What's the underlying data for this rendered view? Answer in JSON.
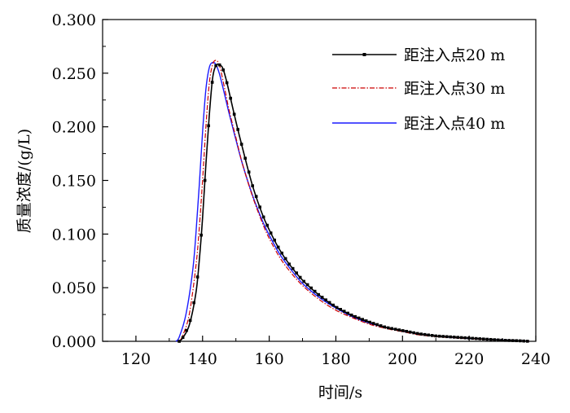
{
  "chart_data": {
    "type": "line",
    "title": "",
    "xlabel": "时间/s",
    "ylabel": "质量浓度/(g/L)",
    "xlim": [
      110,
      240
    ],
    "ylim": [
      0,
      0.3
    ],
    "x_ticks": [
      120,
      140,
      160,
      180,
      200,
      220,
      240
    ],
    "x_tick_labels": [
      "120",
      "140",
      "160",
      "180",
      "200",
      "220",
      "240"
    ],
    "y_ticks": [
      0,
      0.05,
      0.1,
      0.15,
      0.2,
      0.25,
      0.3
    ],
    "y_tick_labels": [
      "0.000",
      "0.050",
      "0.100",
      "0.150",
      "0.200",
      "0.250",
      "0.300"
    ],
    "grid": false,
    "legend_position": "top-right",
    "series": [
      {
        "name": "距注入点20 m",
        "color": "#000000",
        "style": "solid-square-markers",
        "x": [
          133,
          134,
          136,
          138,
          139,
          140,
          141,
          142,
          143,
          144,
          145,
          146,
          147,
          148,
          150,
          152,
          155,
          158,
          160,
          163,
          166,
          170,
          175,
          180,
          185,
          190,
          195,
          200,
          205,
          210,
          215,
          220,
          225,
          230,
          235,
          238
        ],
        "y": [
          0.0,
          0.003,
          0.015,
          0.045,
          0.075,
          0.115,
          0.165,
          0.21,
          0.245,
          0.257,
          0.258,
          0.255,
          0.245,
          0.232,
          0.205,
          0.18,
          0.145,
          0.118,
          0.104,
          0.086,
          0.072,
          0.057,
          0.043,
          0.032,
          0.024,
          0.018,
          0.013,
          0.01,
          0.007,
          0.005,
          0.004,
          0.003,
          0.002,
          0.001,
          0.0005,
          0.0
        ]
      },
      {
        "name": "距注入点30 m",
        "color": "#cc0000",
        "style": "dash-dot",
        "x": [
          133,
          134,
          136,
          138,
          139,
          140,
          141,
          142,
          143,
          144,
          145,
          146,
          147,
          148,
          150,
          152,
          155,
          158,
          160,
          163,
          166,
          170,
          175,
          180,
          185,
          190,
          195,
          200,
          205,
          210,
          215,
          220,
          225,
          230,
          235,
          238
        ],
        "y": [
          0.0,
          0.005,
          0.025,
          0.07,
          0.105,
          0.15,
          0.2,
          0.24,
          0.258,
          0.262,
          0.258,
          0.245,
          0.23,
          0.215,
          0.19,
          0.165,
          0.135,
          0.11,
          0.096,
          0.079,
          0.066,
          0.052,
          0.039,
          0.029,
          0.022,
          0.016,
          0.012,
          0.009,
          0.006,
          0.0045,
          0.0035,
          0.0025,
          0.0018,
          0.001,
          0.0005,
          0.0
        ]
      },
      {
        "name": "距注入点40 m",
        "color": "#1a1aff",
        "style": "solid",
        "x": [
          132,
          133,
          135,
          137,
          138,
          139,
          140,
          141,
          142,
          143,
          144,
          145,
          146,
          147,
          148,
          150,
          152,
          155,
          158,
          160,
          163,
          166,
          170,
          175,
          180,
          185,
          190,
          195,
          200,
          205,
          210,
          215,
          220,
          225,
          230,
          235,
          238
        ],
        "y": [
          0.0,
          0.004,
          0.025,
          0.065,
          0.1,
          0.145,
          0.195,
          0.235,
          0.255,
          0.26,
          0.258,
          0.25,
          0.238,
          0.225,
          0.212,
          0.188,
          0.165,
          0.136,
          0.112,
          0.099,
          0.082,
          0.069,
          0.054,
          0.041,
          0.031,
          0.023,
          0.017,
          0.013,
          0.0095,
          0.007,
          0.005,
          0.0037,
          0.0027,
          0.002,
          0.0012,
          0.0006,
          0.0
        ]
      }
    ]
  }
}
